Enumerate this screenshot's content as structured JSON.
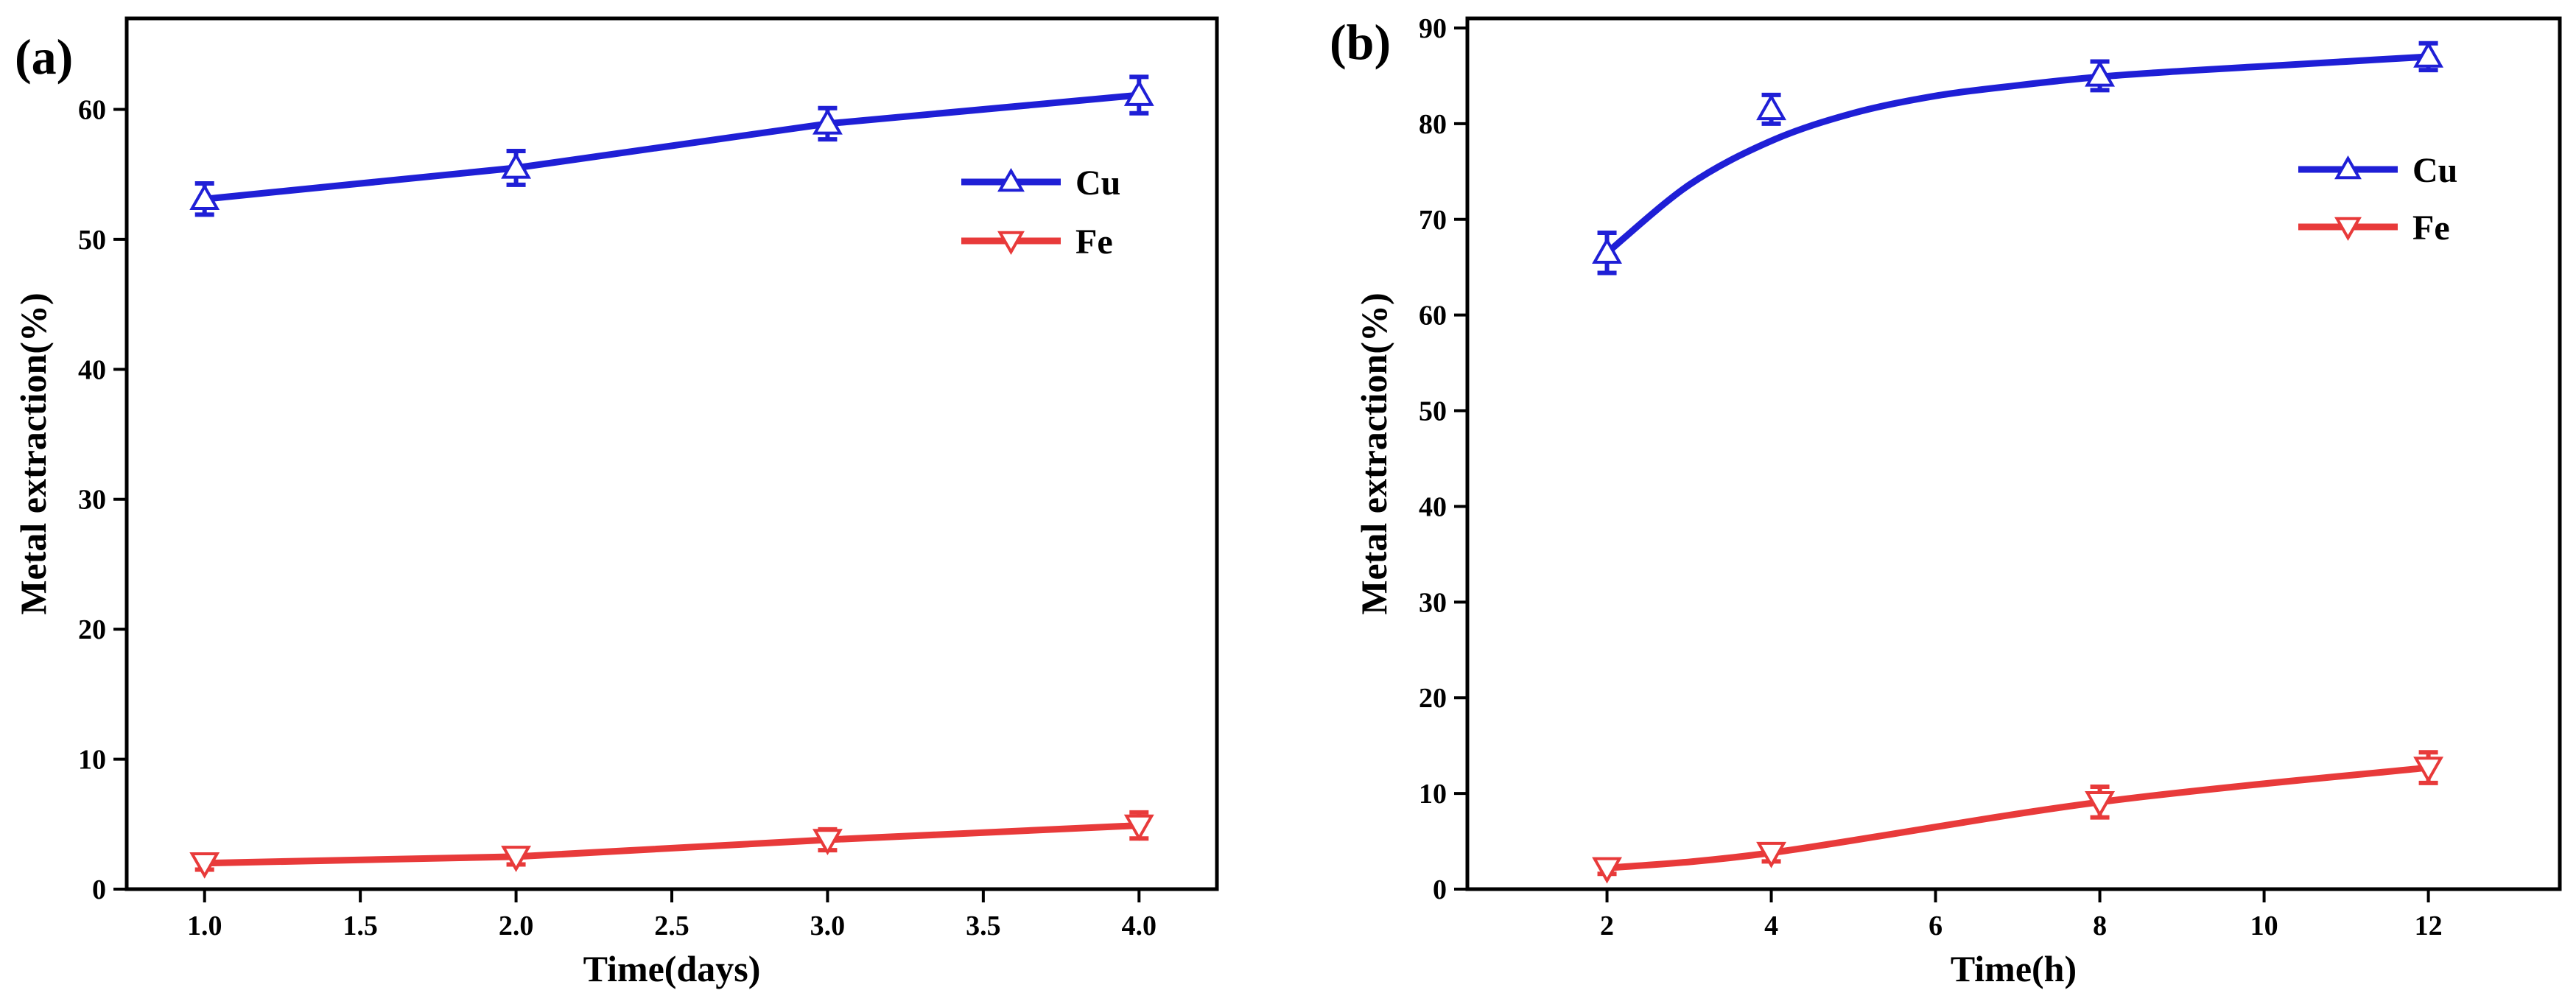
{
  "chart_data": [
    {
      "type": "line",
      "panel_label": "(a)",
      "xlabel": "Time(days)",
      "ylabel": "Metal extraction(%)",
      "xlim": [
        0.75,
        4.25
      ],
      "ylim": [
        0,
        67
      ],
      "xticks": [
        1.0,
        1.5,
        2.0,
        2.5,
        3.0,
        3.5,
        4.0
      ],
      "xtick_labels": [
        "1.0",
        "1.5",
        "2.0",
        "2.5",
        "3.0",
        "3.5",
        "4.0"
      ],
      "yticks": [
        0,
        10,
        20,
        30,
        40,
        50,
        60
      ],
      "ytick_labels": [
        "0",
        "10",
        "20",
        "30",
        "40",
        "50",
        "60"
      ],
      "legend_position": "upper-right",
      "series": [
        {
          "name": "Cu",
          "color": "#1f1fd6",
          "marker": "triangle-up",
          "x": [
            1,
            2,
            3,
            4
          ],
          "values": [
            53.1,
            55.5,
            58.9,
            61.1
          ],
          "error": [
            1.2,
            1.3,
            1.2,
            1.4
          ]
        },
        {
          "name": "Fe",
          "color": "#e83a3a",
          "marker": "triangle-down",
          "x": [
            1,
            2,
            3,
            4
          ],
          "values": [
            2.0,
            2.5,
            3.8,
            4.9
          ],
          "error": [
            0.5,
            0.6,
            0.8,
            1.0
          ]
        }
      ]
    },
    {
      "type": "line",
      "panel_label": "(b)",
      "xlabel": "Time(h)",
      "ylabel": "Metal extraction(%)",
      "xlim": [
        0.3,
        13.6
      ],
      "ylim": [
        0,
        91
      ],
      "xticks": [
        2,
        4,
        6,
        8,
        10,
        12
      ],
      "xtick_labels": [
        "2",
        "4",
        "6",
        "8",
        "10",
        "12"
      ],
      "yticks": [
        0,
        10,
        20,
        30,
        40,
        50,
        60,
        70,
        80,
        90
      ],
      "ytick_labels": [
        "0",
        "10",
        "20",
        "30",
        "40",
        "50",
        "60",
        "70",
        "80",
        "90"
      ],
      "legend_position": "upper-right",
      "series": [
        {
          "name": "Cu",
          "color": "#1f1fd6",
          "marker": "triangle-up",
          "x": [
            2,
            4,
            8,
            12
          ],
          "values": [
            66.5,
            81.5,
            85.0,
            87.0
          ],
          "error": [
            2.1,
            1.5,
            1.5,
            1.4
          ],
          "fit_curve": [
            [
              2,
              66.5
            ],
            [
              3,
              73.6
            ],
            [
              4,
              78.2
            ],
            [
              5,
              81.1
            ],
            [
              6,
              82.9
            ],
            [
              7,
              84.0
            ],
            [
              8,
              84.9
            ],
            [
              9,
              85.5
            ],
            [
              10,
              86.0
            ],
            [
              11,
              86.5
            ],
            [
              12,
              87.0
            ]
          ]
        },
        {
          "name": "Fe",
          "color": "#e83a3a",
          "marker": "triangle-down",
          "x": [
            2,
            4,
            8,
            12
          ],
          "values": [
            2.2,
            3.8,
            9.1,
            12.7
          ],
          "error": [
            0.6,
            0.9,
            1.6,
            1.6
          ]
        }
      ]
    }
  ]
}
